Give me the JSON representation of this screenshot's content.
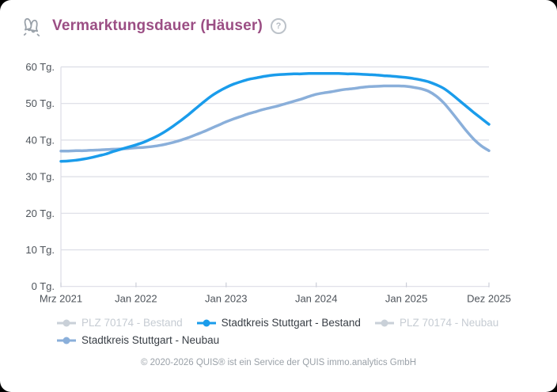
{
  "header": {
    "title": "Vermarktungsdauer (Häuser)",
    "help_label": "?"
  },
  "footer": {
    "text": "© 2020-2026 QUIS® ist ein Service der QUIS immo.analytics GmbH"
  },
  "colors": {
    "title": "#9b4e84",
    "bestand_line": "#1a9ceb",
    "neubau_line": "#8aafda",
    "disabled_legend": "#c9d0d8",
    "grid": "#dcdde6",
    "axis_text": "#4d535a"
  },
  "chart_data": {
    "type": "line",
    "title": "Vermarktungsdauer (Häuser)",
    "y_unit": "Tg.",
    "ylim": [
      0,
      60
    ],
    "y_tick_labels": [
      "0 Tg.",
      "10 Tg.",
      "20 Tg.",
      "30 Tg.",
      "40 Tg.",
      "50 Tg.",
      "60 Tg."
    ],
    "grid": "horizontal",
    "legend_position": "bottom",
    "x_month_count": 58,
    "x_ticks": [
      {
        "label": "Mrz 2021",
        "month": 0
      },
      {
        "label": "Jan 2022",
        "month": 10
      },
      {
        "label": "Jan 2023",
        "month": 22
      },
      {
        "label": "Jan 2024",
        "month": 34
      },
      {
        "label": "Jan 2025",
        "month": 46
      },
      {
        "label": "Dez 2025",
        "month": 57
      }
    ],
    "series": [
      {
        "name": "PLZ 70174 - Bestand",
        "color": "#c9d0d8",
        "enabled": false,
        "values": null
      },
      {
        "name": "Stadtkreis Stuttgart - Bestand",
        "color": "#1a9ceb",
        "enabled": true,
        "values": [
          34.2,
          34.3,
          34.5,
          34.8,
          35.2,
          35.7,
          36.2,
          36.9,
          37.5,
          38.1,
          38.7,
          39.4,
          40.3,
          41.3,
          42.5,
          43.9,
          45.4,
          47.0,
          48.7,
          50.4,
          52.0,
          53.3,
          54.4,
          55.3,
          56.0,
          56.6,
          57.0,
          57.4,
          57.7,
          57.9,
          58.0,
          58.1,
          58.1,
          58.2,
          58.2,
          58.2,
          58.2,
          58.2,
          58.1,
          58.1,
          58.0,
          57.9,
          57.8,
          57.6,
          57.5,
          57.3,
          57.1,
          56.8,
          56.4,
          55.9,
          55.1,
          54.1,
          52.6,
          50.9,
          49.2,
          47.5,
          45.9,
          44.3
        ]
      },
      {
        "name": "PLZ 70174 - Neubau",
        "color": "#c9d0d8",
        "enabled": false,
        "values": null
      },
      {
        "name": "Stadtkreis Stuttgart - Neubau",
        "color": "#8aafda",
        "enabled": true,
        "values": [
          37.0,
          37.0,
          37.1,
          37.1,
          37.2,
          37.3,
          37.4,
          37.5,
          37.6,
          37.7,
          37.9,
          38.0,
          38.2,
          38.5,
          38.9,
          39.4,
          40.0,
          40.7,
          41.5,
          42.3,
          43.2,
          44.1,
          45.0,
          45.8,
          46.5,
          47.2,
          47.8,
          48.4,
          48.9,
          49.4,
          50.0,
          50.6,
          51.2,
          51.9,
          52.5,
          52.9,
          53.2,
          53.6,
          53.9,
          54.1,
          54.4,
          54.6,
          54.7,
          54.8,
          54.8,
          54.8,
          54.7,
          54.4,
          54.0,
          53.3,
          52.0,
          50.1,
          47.7,
          45.1,
          42.5,
          40.2,
          38.4,
          37.1
        ]
      }
    ]
  }
}
